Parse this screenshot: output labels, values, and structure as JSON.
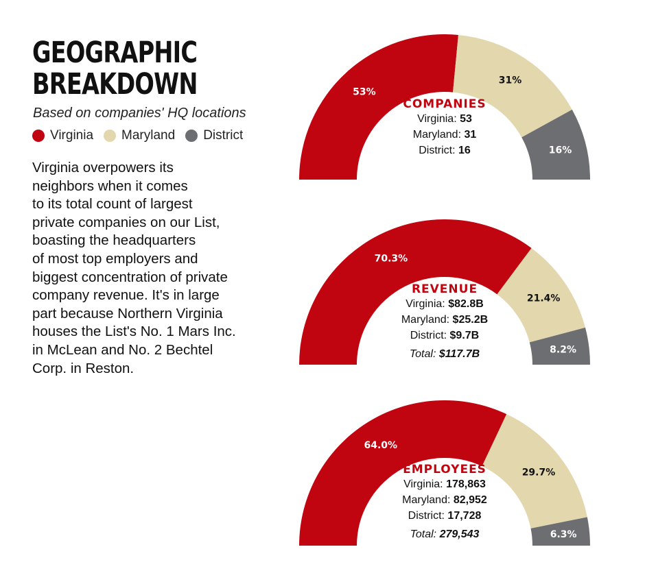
{
  "header": {
    "title_line1": "GEOGRAPHIC",
    "title_line2": "BREAKDOWN",
    "subtitle": "Based on companies' HQ locations"
  },
  "legend": [
    {
      "label": "Virginia",
      "color": "#c00410"
    },
    {
      "label": "Maryland",
      "color": "#e3d7ad"
    },
    {
      "label": "District",
      "color": "#6d6e71"
    }
  ],
  "body_lines": [
    "Virginia overpowers its",
    "neighbors when it comes",
    "to its total count of largest",
    "private companies on our List,",
    "boasting the headquarters",
    "of most top employers and",
    "biggest concentration of private",
    "company revenue. It's in large",
    "part because Northern Virginia",
    "houses the List's No. 1 Mars Inc.",
    "in McLean and No. 2 Bechtel",
    "Corp. in Reston."
  ],
  "chart_data": [
    {
      "type": "pie",
      "style": "half-donut",
      "title": "COMPANIES",
      "categories": [
        "Virginia",
        "Maryland",
        "District"
      ],
      "values": [
        53,
        31,
        16
      ],
      "value_labels": [
        "53",
        "31",
        "16"
      ],
      "slice_labels": [
        "53%",
        "31%",
        "16%"
      ],
      "colors": [
        "#c00410",
        "#e3d7ad",
        "#6d6e71"
      ],
      "total_label": "",
      "total_value": ""
    },
    {
      "type": "pie",
      "style": "half-donut",
      "title": "REVENUE",
      "categories": [
        "Virginia",
        "Maryland",
        "District"
      ],
      "values": [
        70.3,
        21.4,
        8.2
      ],
      "value_labels": [
        "$82.8B",
        "$25.2B",
        "$9.7B"
      ],
      "slice_labels": [
        "70.3%",
        "21.4%",
        "8.2%"
      ],
      "colors": [
        "#c00410",
        "#e3d7ad",
        "#6d6e71"
      ],
      "total_label": "Total:",
      "total_value": "$117.7B"
    },
    {
      "type": "pie",
      "style": "half-donut",
      "title": "EMPLOYEES",
      "categories": [
        "Virginia",
        "Maryland",
        "District"
      ],
      "values": [
        64.0,
        29.7,
        6.3
      ],
      "value_labels": [
        "178,863",
        "82,952",
        "17,728"
      ],
      "slice_labels": [
        "64.0%",
        "29.7%",
        "6.3%"
      ],
      "colors": [
        "#c00410",
        "#e3d7ad",
        "#6d6e71"
      ],
      "total_label": "Total:",
      "total_value": "279,543"
    }
  ]
}
